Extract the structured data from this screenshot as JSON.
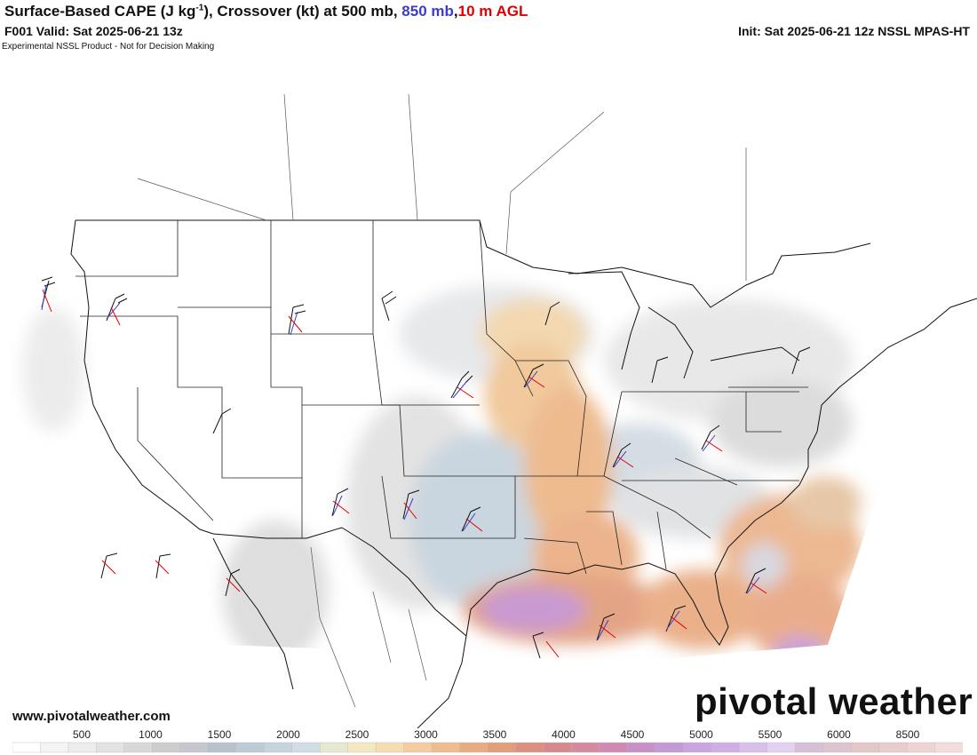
{
  "header": {
    "title_main": "Surface-Based CAPE (J kg",
    "title_sup": "-1",
    "title_after": "), Crossover (kt) at 500 mb, ",
    "title_850": "850 mb",
    "title_comma": ",",
    "title_10m": "10 m AGL",
    "valid": "F001 Valid: Sat 2025-06-21 13z",
    "init": "Init: Sat 2025-06-21 12z NSSL MPAS-HT",
    "disclaimer": "Experimental NSSL Product - Not for Decision Making"
  },
  "footer": {
    "website": "www.pivotalweather.com",
    "brand": "pivotal weather"
  },
  "colors": {
    "layer_500mb": "#111111",
    "layer_850mb": "#3b3bd0",
    "layer_10m": "#e00000"
  },
  "colorbar": {
    "tick_labels": [
      "500",
      "1000",
      "1500",
      "2000",
      "2500",
      "3000",
      "3500",
      "4000",
      "4500",
      "5000",
      "5500",
      "6000",
      "8500"
    ],
    "swatches": [
      "#ffffff",
      "#f4f4f4",
      "#ececec",
      "#e2e2e2",
      "#d8d8d8",
      "#cdcdcd",
      "#c4c8cc",
      "#b7c2cc",
      "#bccbd6",
      "#c6d4de",
      "#d0dde5",
      "#e6e8d0",
      "#f3e9c0",
      "#f6ddb0",
      "#f3cca0",
      "#eebc8e",
      "#e8ac82",
      "#e29e7c",
      "#dc9080",
      "#d68a8c",
      "#d48aa0",
      "#d08ab4",
      "#c890c8",
      "#c49ad6",
      "#c8a4e0",
      "#cfaee6",
      "#d8c0ea",
      "#e4d0f0",
      "#d6c0d8",
      "#ddc4d0",
      "#e3c8c8",
      "#e9cccc",
      "#efd4d4",
      "#f3dcdc"
    ]
  }
}
